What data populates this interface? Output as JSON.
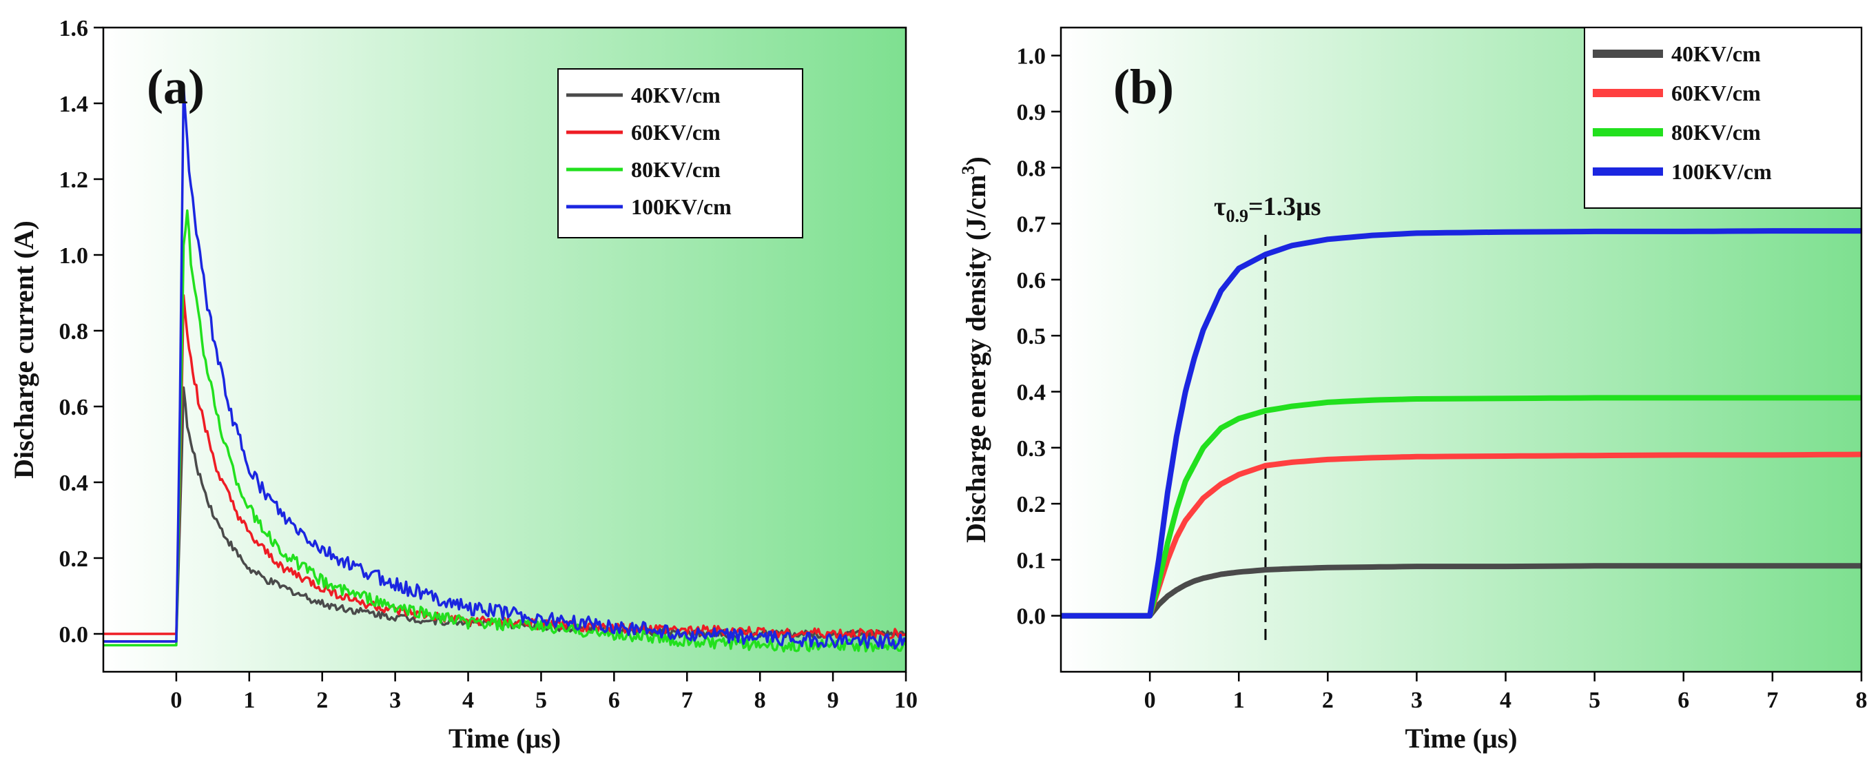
{
  "chart_data": [
    {
      "type": "line",
      "panel_label": "(a)",
      "xlabel": "Time (μs)",
      "ylabel": "Discharge current (A)",
      "xlim": [
        -1.0,
        10.0
      ],
      "ylim": [
        -0.1,
        1.6
      ],
      "x_ticks": [
        0,
        1,
        2,
        3,
        4,
        5,
        6,
        7,
        8,
        9,
        10
      ],
      "x_tick_labels": [
        "0",
        "1",
        "2",
        "3",
        "4",
        "5",
        "6",
        "7",
        "8",
        "9",
        "10"
      ],
      "y_ticks": [
        0.0,
        0.2,
        0.4,
        0.6,
        0.8,
        1.0,
        1.2,
        1.4,
        1.6
      ],
      "y_tick_labels": [
        "0.0",
        "0.2",
        "0.4",
        "0.6",
        "0.8",
        "1.0",
        "1.2",
        "1.4",
        "1.6"
      ],
      "legend_position": "top-right",
      "background": [
        "#ffffff",
        "#7ee090"
      ],
      "x": [
        -1.0,
        0.0,
        0.05,
        0.1,
        0.15,
        0.2,
        0.3,
        0.4,
        0.5,
        0.6,
        0.8,
        1.0,
        1.25,
        1.5,
        2.0,
        2.5,
        3.0,
        3.5,
        4.0,
        5.0,
        6.0,
        7.0,
        8.0,
        9.0,
        10.0
      ],
      "series": [
        {
          "name": "40KV/cm",
          "color": "#4a4a4a",
          "values": [
            -0.02,
            -0.02,
            0.3,
            0.65,
            0.55,
            0.5,
            0.43,
            0.37,
            0.32,
            0.28,
            0.22,
            0.17,
            0.14,
            0.12,
            0.08,
            0.06,
            0.045,
            0.035,
            0.03,
            0.02,
            0.01,
            0.0,
            0.0,
            0.0,
            0.0
          ]
        },
        {
          "name": "60KV/cm",
          "color": "#ee1c24",
          "values": [
            0.0,
            0.0,
            0.4,
            0.9,
            0.8,
            0.72,
            0.62,
            0.54,
            0.47,
            0.41,
            0.33,
            0.26,
            0.21,
            0.17,
            0.12,
            0.085,
            0.06,
            0.045,
            0.035,
            0.025,
            0.015,
            0.01,
            0.005,
            0.0,
            0.0
          ]
        },
        {
          "name": "80KV/cm",
          "color": "#22e01e",
          "values": [
            -0.03,
            -0.03,
            0.45,
            1.02,
            1.12,
            0.98,
            0.84,
            0.72,
            0.63,
            0.55,
            0.42,
            0.33,
            0.26,
            0.21,
            0.14,
            0.1,
            0.07,
            0.05,
            0.03,
            0.02,
            0.0,
            -0.02,
            -0.03,
            -0.03,
            -0.03
          ]
        },
        {
          "name": "100KV/cm",
          "color": "#1b26e0",
          "values": [
            -0.02,
            -0.02,
            0.6,
            1.46,
            1.3,
            1.18,
            1.03,
            0.9,
            0.79,
            0.7,
            0.55,
            0.44,
            0.36,
            0.3,
            0.22,
            0.17,
            0.13,
            0.1,
            0.07,
            0.04,
            0.02,
            0.0,
            -0.01,
            -0.02,
            -0.02
          ]
        }
      ]
    },
    {
      "type": "line",
      "panel_label": "(b)",
      "xlabel": "Time (μs)",
      "ylabel_main": "Discharge energy density (J/cm",
      "ylabel_sup": "3",
      "ylabel_end": ")",
      "xlim": [
        -1.0,
        8.0
      ],
      "ylim": [
        -0.1,
        1.05
      ],
      "x_ticks": [
        0,
        1,
        2,
        3,
        4,
        5,
        6,
        7,
        8
      ],
      "x_tick_labels": [
        "0",
        "1",
        "2",
        "3",
        "4",
        "5",
        "6",
        "7",
        "8"
      ],
      "y_ticks": [
        0.0,
        0.1,
        0.2,
        0.3,
        0.4,
        0.5,
        0.6,
        0.7,
        0.8,
        0.9,
        1.0
      ],
      "y_tick_labels": [
        "0.0",
        "0.1",
        "0.2",
        "0.3",
        "0.4",
        "0.5",
        "0.6",
        "0.7",
        "0.8",
        "0.9",
        "1.0"
      ],
      "legend_position": "top-right",
      "background": [
        "#ffffff",
        "#7ee090"
      ],
      "annotation": {
        "tau_symbol": "τ",
        "tau_sub": "0.9",
        "text": "=1.3μs",
        "x": 1.3
      },
      "x": [
        -1.0,
        0.0,
        0.1,
        0.2,
        0.3,
        0.4,
        0.5,
        0.6,
        0.8,
        1.0,
        1.3,
        1.6,
        2.0,
        2.5,
        3.0,
        4.0,
        5.0,
        6.0,
        7.0,
        8.0
      ],
      "series": [
        {
          "name": "40KV/cm",
          "color": "#4a4a4a",
          "values": [
            0.0,
            0.0,
            0.02,
            0.035,
            0.046,
            0.055,
            0.062,
            0.067,
            0.074,
            0.078,
            0.082,
            0.084,
            0.086,
            0.087,
            0.088,
            0.088,
            0.089,
            0.089,
            0.089,
            0.089
          ]
        },
        {
          "name": "60KV/cm",
          "color": "#ff4040",
          "values": [
            0.0,
            0.0,
            0.05,
            0.1,
            0.14,
            0.17,
            0.19,
            0.21,
            0.235,
            0.252,
            0.268,
            0.274,
            0.279,
            0.282,
            0.284,
            0.285,
            0.286,
            0.287,
            0.287,
            0.288
          ]
        },
        {
          "name": "80KV/cm",
          "color": "#22e01e",
          "values": [
            0.0,
            0.0,
            0.06,
            0.13,
            0.19,
            0.24,
            0.27,
            0.3,
            0.335,
            0.352,
            0.366,
            0.374,
            0.381,
            0.385,
            0.387,
            0.388,
            0.389,
            0.389,
            0.389,
            0.389
          ]
        },
        {
          "name": "100KV/cm",
          "color": "#1b26e0",
          "values": [
            0.0,
            0.0,
            0.1,
            0.22,
            0.32,
            0.4,
            0.46,
            0.51,
            0.58,
            0.62,
            0.645,
            0.661,
            0.672,
            0.679,
            0.683,
            0.685,
            0.686,
            0.686,
            0.687,
            0.687
          ]
        }
      ]
    }
  ]
}
